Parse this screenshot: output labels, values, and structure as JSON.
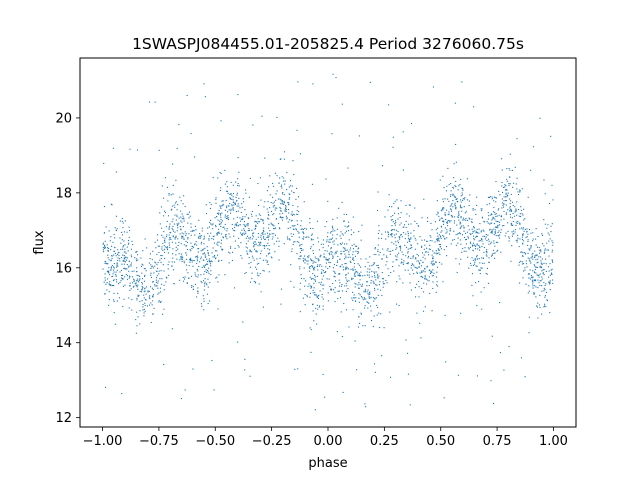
{
  "chart_data": {
    "type": "scatter",
    "title": "1SWASPJ084455.01-205825.4 Period 3276060.75s",
    "xlabel": "phase",
    "ylabel": "flux",
    "xlim": [
      -1.1,
      1.1
    ],
    "ylim": [
      11.75,
      21.6
    ],
    "xticks": [
      -1.0,
      -0.75,
      -0.5,
      -0.25,
      0.0,
      0.25,
      0.5,
      0.75,
      1.0
    ],
    "xtick_labels": [
      "−1.00",
      "−0.75",
      "−0.50",
      "−0.25",
      "0.00",
      "0.25",
      "0.50",
      "0.75",
      "1.00"
    ],
    "yticks": [
      12,
      14,
      16,
      18,
      20
    ],
    "ytick_labels": [
      "12",
      "14",
      "16",
      "18",
      "20"
    ],
    "grid": false,
    "marker_color": "#1f77b4",
    "series": [
      {
        "phase_profile": {
          "x": [
            0.0,
            0.05,
            0.1,
            0.2,
            0.3,
            0.4,
            0.5,
            0.6,
            0.7,
            0.8,
            0.9,
            1.0
          ],
          "y_median": [
            16.2,
            15.5,
            15.8,
            16.1,
            16.3,
            16.6,
            16.8,
            17.0,
            17.2,
            17.1,
            16.6,
            16.2
          ]
        },
        "x_range": [
          -1.0,
          1.0
        ],
        "y_range": [
          12.2,
          21.2
        ],
        "typical_spread": [
          14.5,
          19.5
        ]
      }
    ]
  }
}
